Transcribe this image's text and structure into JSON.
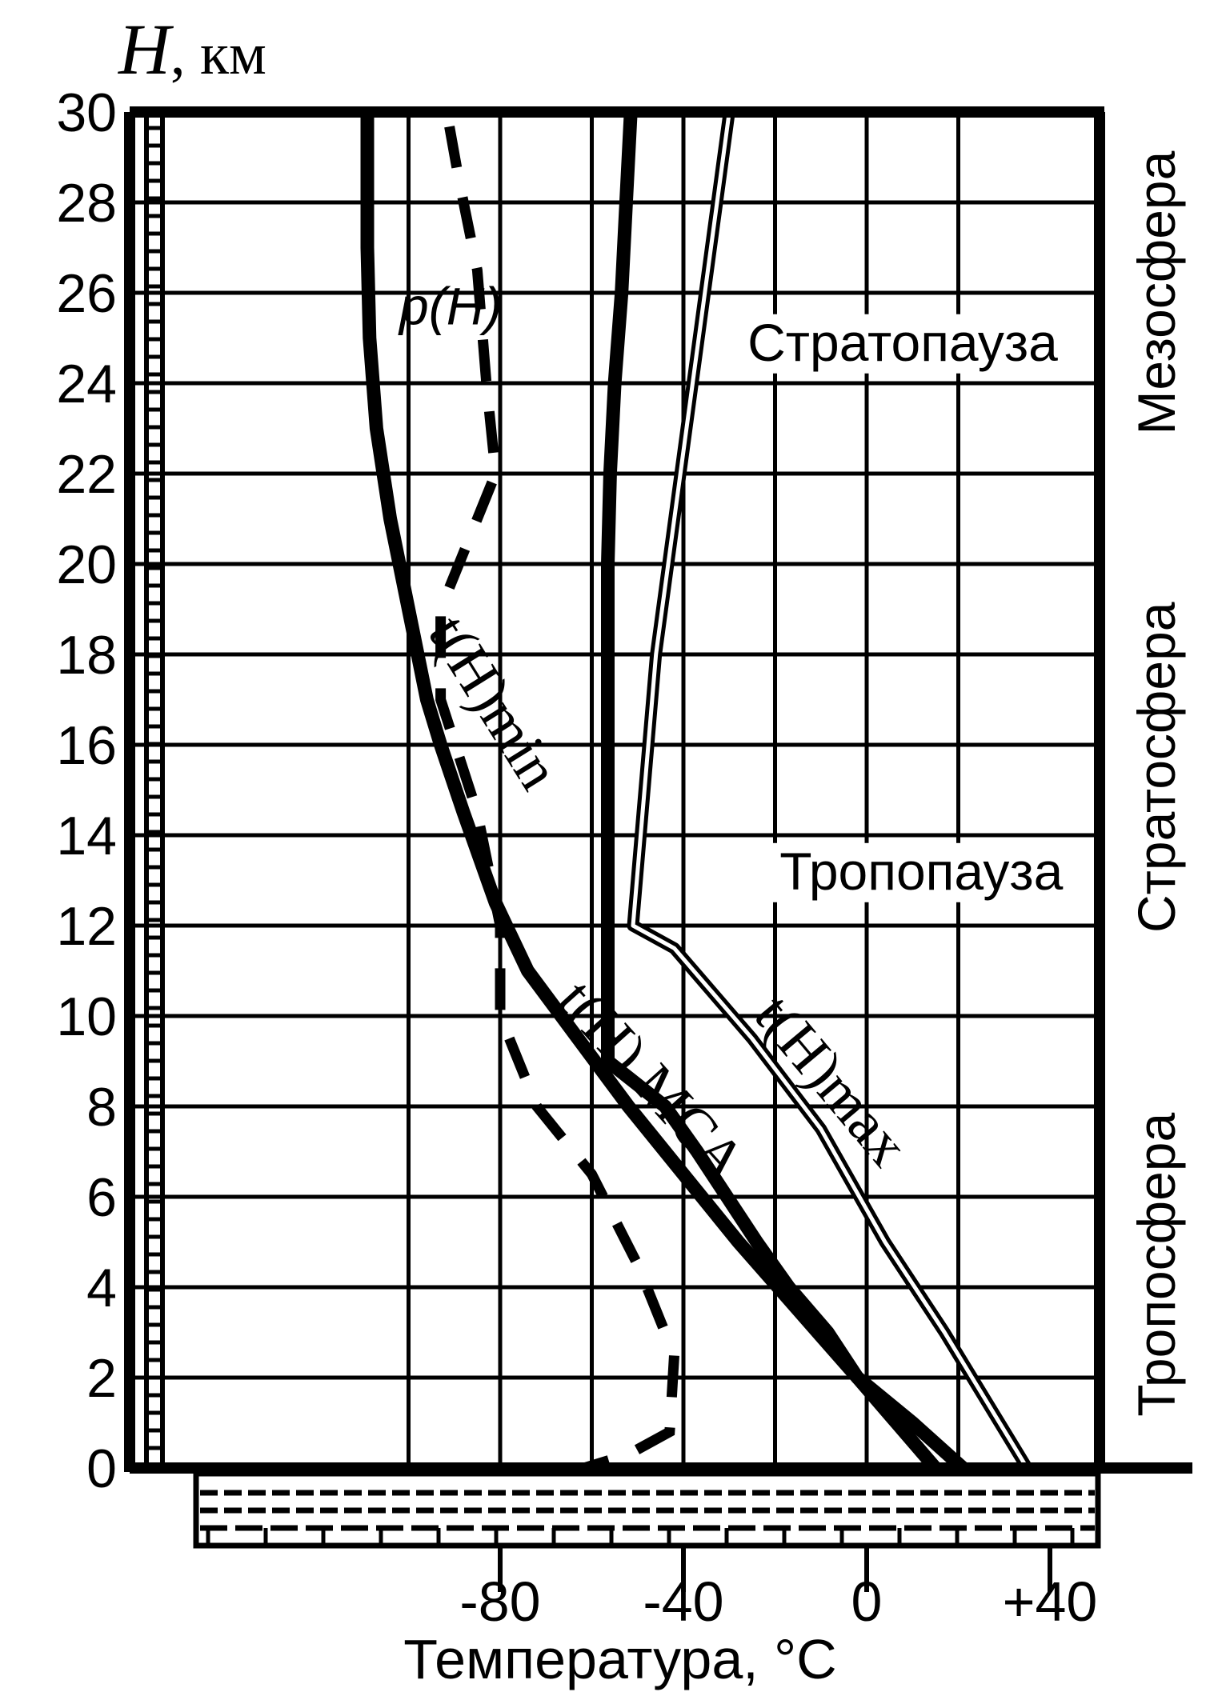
{
  "chart_data": {
    "type": "line",
    "y_axis": {
      "label_italic": "H",
      "label_rest": ", км",
      "range": [
        0,
        30
      ],
      "ticks": [
        "0",
        "2",
        "4",
        "6",
        "8",
        "10",
        "12",
        "14",
        "16",
        "18",
        "20",
        "22",
        "24",
        "26",
        "28",
        "30"
      ]
    },
    "x_axis": {
      "label": "Температура, °С",
      "range": [
        -100,
        40
      ],
      "ticks": [
        {
          "value": -80,
          "label": "-80"
        },
        {
          "value": -40,
          "label": "-40"
        },
        {
          "value": 0,
          "label": "0"
        },
        {
          "value": 40,
          "label": "+40"
        }
      ]
    },
    "grid": true,
    "layers": [
      {
        "label": "Тропосфера",
        "from_km": 0,
        "to_km": 9
      },
      {
        "label": "Стратосфера",
        "from_km": 10,
        "to_km": 21
      },
      {
        "label": "Мезосфера",
        "from_km": 22,
        "to_km": 30
      }
    ],
    "annotations": [
      {
        "label": "Стратопауза",
        "at": [
          -26,
          24.5
        ]
      },
      {
        "label": "Тропопауза",
        "at": [
          -19,
          12.8
        ]
      }
    ],
    "series": [
      {
        "name": "t(H) МСА",
        "style": "thick",
        "points": [
          [
            15,
            0
          ],
          [
            6.5,
            1
          ],
          [
            -2,
            2
          ],
          [
            -8.5,
            3
          ],
          [
            -17,
            4
          ],
          [
            -24,
            5
          ],
          [
            -30.5,
            6
          ],
          [
            -37,
            7
          ],
          [
            -44,
            8
          ],
          [
            -56.5,
            9
          ],
          [
            -56.5,
            11
          ],
          [
            -56.5,
            12
          ],
          [
            -56.5,
            14
          ],
          [
            -56.5,
            16
          ],
          [
            -56.5,
            18
          ],
          [
            -56.5,
            20
          ],
          [
            -56,
            22
          ],
          [
            -55,
            24
          ],
          [
            -53.5,
            26
          ],
          [
            -52.5,
            28
          ],
          [
            -51.5,
            30
          ]
        ]
      },
      {
        "name": "t(H)min",
        "style": "thick",
        "points": [
          [
            21,
            0
          ],
          [
            10,
            1
          ],
          [
            -2,
            2
          ],
          [
            -15,
            3.5
          ],
          [
            -28,
            5
          ],
          [
            -40,
            6.5
          ],
          [
            -52,
            8
          ],
          [
            -63,
            9.5
          ],
          [
            -74,
            11
          ],
          [
            -81,
            12.5
          ],
          [
            -88,
            14.5
          ],
          [
            -93,
            16
          ],
          [
            -96,
            17
          ],
          [
            -100,
            19
          ],
          [
            -104,
            21
          ],
          [
            -107,
            23
          ],
          [
            -108.5,
            25
          ],
          [
            -109,
            27
          ],
          [
            -109,
            30
          ]
        ]
      },
      {
        "name": "t(H)max",
        "style": "double",
        "points": [
          [
            35,
            0
          ],
          [
            17,
            3
          ],
          [
            4,
            5
          ],
          [
            -10,
            7.5
          ],
          [
            -25,
            9.5
          ],
          [
            -42,
            11.5
          ],
          [
            -51,
            12
          ],
          [
            -46,
            18
          ],
          [
            -38,
            24
          ],
          [
            -34,
            27
          ],
          [
            -30,
            30
          ]
        ]
      },
      {
        "name": "p(H)",
        "style": "dashed",
        "points": [
          [
            -65,
            -0.1
          ],
          [
            -52,
            0.3
          ],
          [
            -43,
            0.8
          ],
          [
            -42,
            2.5
          ],
          [
            -50,
            4.5
          ],
          [
            -60,
            6.5
          ],
          [
            -72,
            8
          ],
          [
            -80,
            10
          ],
          [
            -80,
            12
          ],
          [
            -85,
            14.5
          ],
          [
            -93,
            17
          ],
          [
            -93,
            19
          ],
          [
            -81,
            22
          ],
          [
            -83,
            24
          ],
          [
            -85,
            26.5
          ],
          [
            -89,
            28.5
          ],
          [
            -92,
            30.2
          ]
        ]
      }
    ],
    "curve_labels": [
      {
        "series": "p(H)",
        "text": "p(H)",
        "at": [
          -102,
          25.3
        ]
      },
      {
        "series": "t(H)min",
        "text": "t(H)min",
        "at": [
          -96,
          18.5
        ]
      },
      {
        "series": "t(H) МСА",
        "text": "t(H) МСА",
        "at": [
          -68,
          10.3
        ]
      },
      {
        "series": "t(H)max",
        "text": "t(H)max",
        "at": [
          -25,
          10
        ]
      }
    ]
  }
}
